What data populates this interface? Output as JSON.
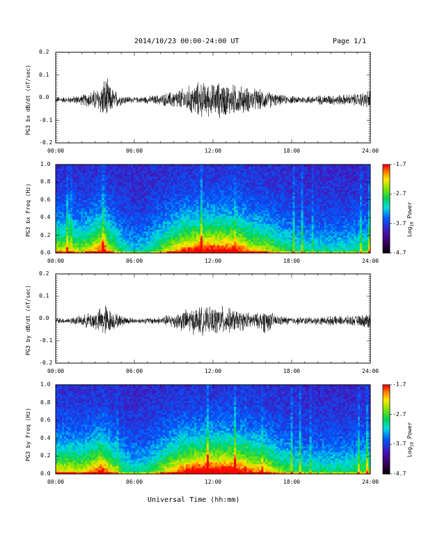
{
  "header": {
    "date_range": "2014/10/23  00:00-24:00 UT",
    "page": "Page 1/1"
  },
  "x_axis": {
    "label": "Universal Time (hh:mm)",
    "ticks": [
      "00:00",
      "06:00",
      "12:00",
      "18:00",
      "24:00"
    ]
  },
  "colorbar": {
    "label": "Log10 Power",
    "ticks": [
      "-1.7",
      "-2.7",
      "-3.7",
      "-4.7"
    ]
  },
  "chart_data": [
    {
      "type": "line",
      "ylabel": "PG3 bx dB/dt (nT/sec)",
      "xlim": [
        0,
        24
      ],
      "ylim": [
        -0.2,
        0.2
      ],
      "y_ticks": [
        "0.2",
        "0.1",
        "0.0",
        "-0.1",
        "-0.2"
      ],
      "envelope_x_hours": [
        0,
        1,
        2,
        2.5,
        3,
        3.5,
        3.8,
        4.2,
        5,
        6,
        7,
        8,
        9,
        10,
        10.5,
        11,
        11.5,
        12,
        12.5,
        13,
        13.5,
        14,
        14.5,
        15,
        15.5,
        16,
        16.5,
        17,
        18,
        19,
        20,
        21,
        22,
        23,
        23.5,
        24
      ],
      "envelope_amplitude": [
        0.01,
        0.012,
        0.02,
        0.03,
        0.04,
        0.06,
        0.09,
        0.05,
        0.02,
        0.01,
        0.015,
        0.02,
        0.035,
        0.05,
        0.06,
        0.07,
        0.065,
        0.06,
        0.07,
        0.065,
        0.06,
        0.055,
        0.05,
        0.045,
        0.04,
        0.035,
        0.03,
        0.02,
        0.015,
        0.015,
        0.018,
        0.02,
        0.02,
        0.025,
        0.03,
        0.04
      ]
    },
    {
      "type": "heatmap",
      "ylabel": "PG3 bx Freq (Hz)",
      "xlim": [
        0,
        24
      ],
      "ylim": [
        0,
        1.0
      ],
      "y_ticks": [
        "1.0",
        "0.8",
        "0.6",
        "0.4",
        "0.2",
        "0.0"
      ],
      "zlim": [
        -4.7,
        -1.7
      ],
      "activity_x_hours": [
        0,
        1,
        2,
        3,
        3.5,
        4,
        5,
        6,
        7,
        8,
        9,
        10,
        11,
        12,
        13,
        14,
        15,
        16,
        17,
        18,
        19,
        20,
        21,
        22,
        23,
        24
      ],
      "activity_level": [
        0.55,
        0.55,
        0.5,
        0.65,
        0.75,
        0.6,
        0.35,
        0.25,
        0.3,
        0.45,
        0.6,
        0.75,
        0.8,
        0.8,
        0.8,
        0.75,
        0.6,
        0.55,
        0.45,
        0.35,
        0.3,
        0.3,
        0.3,
        0.3,
        0.35,
        0.4
      ]
    },
    {
      "type": "line",
      "ylabel": "PG3 by dB/dt (nT/sec)",
      "xlim": [
        0,
        24
      ],
      "ylim": [
        -0.2,
        0.2
      ],
      "y_ticks": [
        "0.2",
        "0.1",
        "0.0",
        "-0.1",
        "-0.2"
      ],
      "envelope_x_hours": [
        0,
        1,
        2,
        2.5,
        3,
        3.5,
        3.8,
        4.2,
        5,
        6,
        7,
        8,
        9,
        10,
        10.5,
        11,
        11.5,
        12,
        12.5,
        13,
        13.5,
        14,
        14.5,
        15,
        15.5,
        16,
        16.5,
        17,
        18,
        19,
        20,
        21,
        22,
        23,
        23.5,
        24
      ],
      "envelope_amplitude": [
        0.01,
        0.012,
        0.02,
        0.03,
        0.04,
        0.05,
        0.07,
        0.04,
        0.02,
        0.01,
        0.012,
        0.015,
        0.03,
        0.045,
        0.05,
        0.055,
        0.05,
        0.05,
        0.06,
        0.05,
        0.045,
        0.04,
        0.035,
        0.03,
        0.03,
        0.05,
        0.03,
        0.02,
        0.015,
        0.015,
        0.015,
        0.018,
        0.018,
        0.02,
        0.025,
        0.035
      ]
    },
    {
      "type": "heatmap",
      "ylabel": "PG3 by Freq (Hz)",
      "xlim": [
        0,
        24
      ],
      "ylim": [
        0,
        1.0
      ],
      "y_ticks": [
        "1.0",
        "0.8",
        "0.6",
        "0.4",
        "0.2",
        "0.0"
      ],
      "zlim": [
        -4.7,
        -1.7
      ],
      "activity_x_hours": [
        0,
        1,
        2,
        3,
        3.5,
        4,
        5,
        6,
        7,
        8,
        9,
        10,
        11,
        12,
        13,
        14,
        15,
        16,
        17,
        18,
        19,
        20,
        21,
        22,
        23,
        24
      ],
      "activity_level": [
        0.6,
        0.6,
        0.55,
        0.7,
        0.8,
        0.65,
        0.4,
        0.3,
        0.35,
        0.5,
        0.65,
        0.8,
        0.85,
        0.85,
        0.85,
        0.8,
        0.7,
        0.65,
        0.5,
        0.4,
        0.35,
        0.35,
        0.35,
        0.35,
        0.4,
        0.45
      ]
    }
  ]
}
